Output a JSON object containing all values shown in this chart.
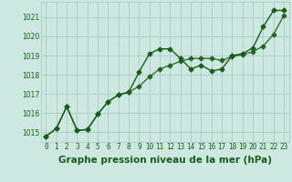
{
  "title": "Graphe pression niveau de la mer (hPa)",
  "bg_color": "#cce8e0",
  "grid_color": "#aaccc4",
  "line_color": "#1a5c1a",
  "xlim": [
    -0.5,
    23.5
  ],
  "ylim": [
    1014.5,
    1021.8
  ],
  "xticks": [
    0,
    1,
    2,
    3,
    4,
    5,
    6,
    7,
    8,
    9,
    10,
    11,
    12,
    13,
    14,
    15,
    16,
    17,
    18,
    19,
    20,
    21,
    22,
    23
  ],
  "yticks": [
    1015,
    1016,
    1017,
    1018,
    1019,
    1020,
    1021
  ],
  "series1_x": [
    0,
    1,
    2,
    3,
    4,
    5,
    6,
    7,
    8,
    9,
    10,
    11,
    12,
    13,
    14,
    15,
    16,
    17,
    18,
    19,
    20,
    21,
    22,
    23
  ],
  "series1_y": [
    1014.8,
    1015.2,
    1016.35,
    1015.1,
    1015.15,
    1015.95,
    1016.6,
    1016.95,
    1017.1,
    1018.15,
    1019.1,
    1019.35,
    1019.35,
    1018.85,
    1018.3,
    1018.5,
    1018.2,
    1018.3,
    1019.0,
    1019.1,
    1019.4,
    1020.5,
    1021.35,
    1021.35
  ],
  "series2_x": [
    0,
    1,
    2,
    3,
    4,
    5,
    6,
    7,
    8,
    9,
    10,
    11,
    12,
    13,
    14,
    15,
    16,
    17,
    18,
    19,
    20,
    21,
    22,
    23
  ],
  "series2_y": [
    1014.8,
    1015.2,
    1016.35,
    1015.1,
    1015.15,
    1015.95,
    1016.6,
    1016.95,
    1017.1,
    1017.4,
    1017.9,
    1018.3,
    1018.5,
    1018.7,
    1018.85,
    1018.85,
    1018.85,
    1018.75,
    1018.95,
    1019.05,
    1019.2,
    1019.5,
    1020.1,
    1021.1
  ],
  "marker": "D",
  "markersize": 2.5,
  "linewidth": 1.0,
  "title_fontsize": 7.5,
  "tick_fontsize": 5.5,
  "title_color": "#1a5c1a"
}
